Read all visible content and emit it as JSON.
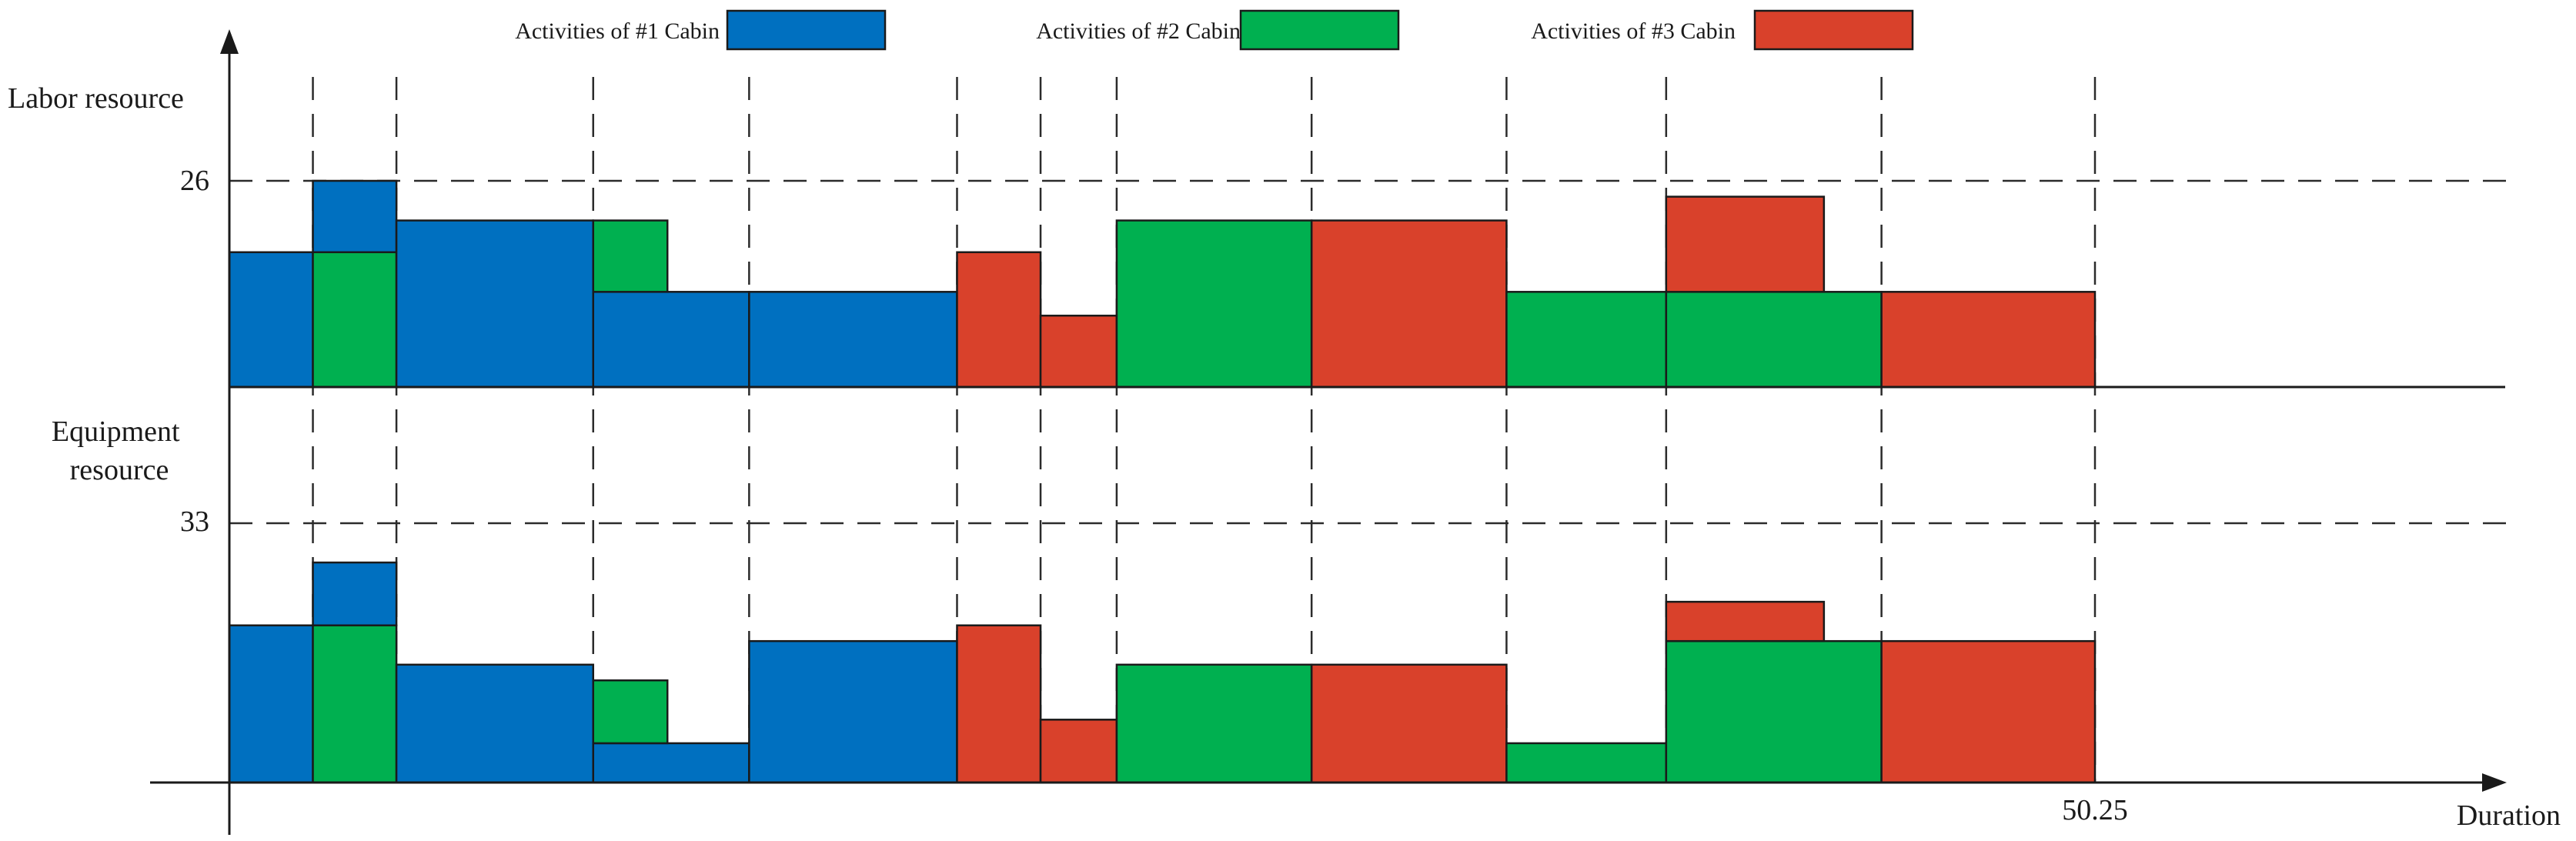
{
  "chart_data": {
    "type": "bar",
    "legend": [
      {
        "label": "Activities of #1 Cabin",
        "color": "#0070C0"
      },
      {
        "label": "Activities of #2 Cabin",
        "color": "#00B050"
      },
      {
        "label": "Activities of #3 Cabin",
        "color": "#D9412B"
      }
    ],
    "legend_position": "top",
    "x_axis": {
      "label": "Duration",
      "ticks": [
        {
          "value": 50.25,
          "label": "50.25"
        }
      ],
      "range": [
        0,
        61
      ]
    },
    "grid": "dashed guides at activity boundaries and resource limits",
    "panels": [
      {
        "name": "labor",
        "ylabel": "Labor resource",
        "limit": {
          "value": 26,
          "label": "26"
        },
        "ylim": [
          0,
          32
        ],
        "bars": [
          {
            "x0": 0.0,
            "x1": 2.25,
            "y0": 0,
            "y1": 17,
            "cabin": 1
          },
          {
            "x0": 2.25,
            "x1": 4.5,
            "y0": 0,
            "y1": 17,
            "cabin": 2
          },
          {
            "x0": 2.25,
            "x1": 4.5,
            "y0": 17,
            "y1": 26,
            "cabin": 1
          },
          {
            "x0": 4.5,
            "x1": 9.8,
            "y0": 0,
            "y1": 21,
            "cabin": 1
          },
          {
            "x0": 9.8,
            "x1": 14.0,
            "y0": 0,
            "y1": 12,
            "cabin": 1
          },
          {
            "x0": 9.8,
            "x1": 11.8,
            "y0": 12,
            "y1": 21,
            "cabin": 2
          },
          {
            "x0": 14.0,
            "x1": 19.6,
            "y0": 0,
            "y1": 12,
            "cabin": 1
          },
          {
            "x0": 19.6,
            "x1": 21.85,
            "y0": 0,
            "y1": 17,
            "cabin": 3
          },
          {
            "x0": 21.85,
            "x1": 23.9,
            "y0": 0,
            "y1": 9,
            "cabin": 3
          },
          {
            "x0": 23.9,
            "x1": 29.15,
            "y0": 0,
            "y1": 21,
            "cabin": 2
          },
          {
            "x0": 29.15,
            "x1": 34.4,
            "y0": 0,
            "y1": 21,
            "cabin": 3
          },
          {
            "x0": 34.4,
            "x1": 38.7,
            "y0": 0,
            "y1": 12,
            "cabin": 2
          },
          {
            "x0": 38.7,
            "x1": 44.5,
            "y0": 0,
            "y1": 12,
            "cabin": 2
          },
          {
            "x0": 38.7,
            "x1": 42.95,
            "y0": 12,
            "y1": 24,
            "cabin": 3
          },
          {
            "x0": 44.5,
            "x1": 50.25,
            "y0": 0,
            "y1": 12,
            "cabin": 3
          }
        ]
      },
      {
        "name": "equipment",
        "ylabel": "Equipment resource",
        "limit": {
          "value": 33,
          "label": "33"
        },
        "ylim": [
          0,
          40
        ],
        "bars": [
          {
            "x0": 0.0,
            "x1": 2.25,
            "y0": 0,
            "y1": 20,
            "cabin": 1
          },
          {
            "x0": 2.25,
            "x1": 4.5,
            "y0": 0,
            "y1": 20,
            "cabin": 2
          },
          {
            "x0": 2.25,
            "x1": 4.5,
            "y0": 20,
            "y1": 28,
            "cabin": 1
          },
          {
            "x0": 4.5,
            "x1": 9.8,
            "y0": 0,
            "y1": 15,
            "cabin": 1
          },
          {
            "x0": 9.8,
            "x1": 14.0,
            "y0": 0,
            "y1": 5,
            "cabin": 1
          },
          {
            "x0": 9.8,
            "x1": 11.8,
            "y0": 5,
            "y1": 13,
            "cabin": 2
          },
          {
            "x0": 14.0,
            "x1": 19.6,
            "y0": 0,
            "y1": 18,
            "cabin": 1
          },
          {
            "x0": 19.6,
            "x1": 21.85,
            "y0": 0,
            "y1": 20,
            "cabin": 3
          },
          {
            "x0": 21.85,
            "x1": 23.9,
            "y0": 0,
            "y1": 8,
            "cabin": 3
          },
          {
            "x0": 23.9,
            "x1": 29.15,
            "y0": 0,
            "y1": 15,
            "cabin": 2
          },
          {
            "x0": 29.15,
            "x1": 34.4,
            "y0": 0,
            "y1": 15,
            "cabin": 3
          },
          {
            "x0": 34.4,
            "x1": 38.7,
            "y0": 0,
            "y1": 5,
            "cabin": 2
          },
          {
            "x0": 38.7,
            "x1": 44.5,
            "y0": 0,
            "y1": 18,
            "cabin": 2
          },
          {
            "x0": 38.7,
            "x1": 42.95,
            "y0": 18,
            "y1": 23,
            "cabin": 3
          },
          {
            "x0": 44.5,
            "x1": 50.25,
            "y0": 0,
            "y1": 18,
            "cabin": 3
          }
        ]
      }
    ],
    "boundaries": [
      2.25,
      4.5,
      9.8,
      14.0,
      19.6,
      21.85,
      23.9,
      29.15,
      34.4,
      38.7,
      44.5,
      50.25
    ]
  }
}
